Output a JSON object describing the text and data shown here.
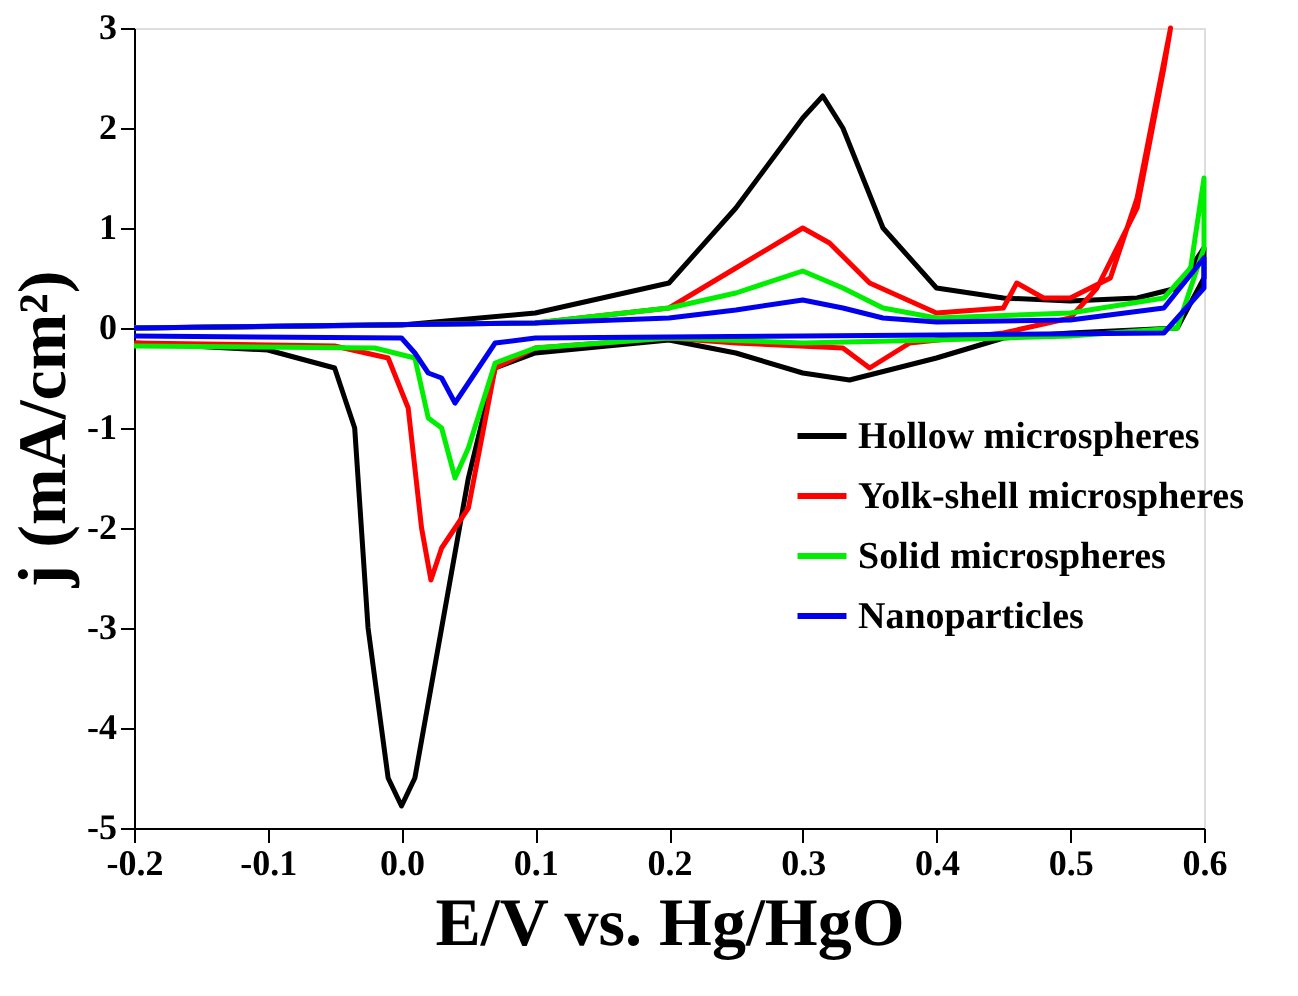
{
  "chart_data": {
    "type": "line",
    "xlabel": "E/V vs. Hg/HgO",
    "ylabel": "j (mA/cm²)",
    "xlim": [
      -0.2,
      0.6
    ],
    "ylim": [
      -5,
      3
    ],
    "xticks": [
      {
        "value": -0.2,
        "label": "-0.2"
      },
      {
        "value": -0.1,
        "label": "-0.1"
      },
      {
        "value": 0,
        "label": "0.0"
      },
      {
        "value": 0.1,
        "label": "0.1"
      },
      {
        "value": 0.2,
        "label": "0.2"
      },
      {
        "value": 0.3,
        "label": "0.3"
      },
      {
        "value": 0.4,
        "label": "0.4"
      },
      {
        "value": 0.5,
        "label": "0.5"
      },
      {
        "value": 0.6,
        "label": "0.6"
      }
    ],
    "yticks": [
      -5,
      -4,
      -3,
      -2,
      -1,
      0,
      1,
      2,
      3
    ],
    "grid": false,
    "legend": "right",
    "line_style": "solid",
    "marker": "none",
    "series": [
      {
        "name": "Hollow microspheres",
        "color": "#000000",
        "x": [
          -0.2,
          0,
          0.1,
          0.2,
          0.25,
          0.3,
          0.315,
          0.33,
          0.36,
          0.4,
          0.45,
          0.5,
          0.55,
          0.58,
          0.6,
          0.6,
          0.58,
          0.5,
          0.45,
          0.4,
          0.335,
          0.3,
          0.25,
          0.2,
          0.1,
          0.07,
          0.05,
          0.03,
          0.01,
          0,
          -0.01,
          -0.025,
          -0.035,
          -0.05,
          -0.1,
          -0.2
        ],
        "values": [
          0,
          0.03,
          0.15,
          0.45,
          1.2,
          2.1,
          2.32,
          2.0,
          1.0,
          0.4,
          0.3,
          0.27,
          0.3,
          0.4,
          0.8,
          0.5,
          0,
          -0.05,
          -0.1,
          -0.3,
          -0.52,
          -0.45,
          -0.25,
          -0.12,
          -0.25,
          -0.4,
          -1.5,
          -3.0,
          -4.5,
          -4.78,
          -4.5,
          -3.0,
          -1.0,
          -0.4,
          -0.22,
          -0.15
        ]
      },
      {
        "name": "Yolk-shell microspheres",
        "color": "#ff0000",
        "x": [
          -0.2,
          0.1,
          0.2,
          0.25,
          0.3,
          0.32,
          0.35,
          0.4,
          0.45,
          0.46,
          0.48,
          0.5,
          0.53,
          0.55,
          0.575,
          0.57,
          0.55,
          0.52,
          0.5,
          0.45,
          0.38,
          0.35,
          0.33,
          0.25,
          0.2,
          0.1,
          0.07,
          0.05,
          0.04,
          0.03,
          0.022,
          0.015,
          0.005,
          -0.01,
          -0.05,
          -0.2
        ],
        "values": [
          0,
          0.05,
          0.2,
          0.6,
          1.0,
          0.85,
          0.45,
          0.15,
          0.2,
          0.45,
          0.3,
          0.3,
          0.5,
          1.3,
          3.0,
          2.6,
          1.2,
          0.4,
          0.1,
          -0.05,
          -0.15,
          -0.4,
          -0.2,
          -0.15,
          -0.1,
          -0.2,
          -0.4,
          -1.8,
          -2.0,
          -2.2,
          -2.52,
          -2.0,
          -0.8,
          -0.3,
          -0.18,
          -0.15
        ]
      },
      {
        "name": "Solid microspheres",
        "color": "#00ee00",
        "x": [
          -0.2,
          0.1,
          0.2,
          0.25,
          0.3,
          0.33,
          0.36,
          0.4,
          0.5,
          0.57,
          0.59,
          0.6,
          0.6,
          0.58,
          0.5,
          0.4,
          0.3,
          0.2,
          0.1,
          0.07,
          0.05,
          0.04,
          0.03,
          0.02,
          0.01,
          -0.02,
          -0.2
        ],
        "values": [
          0,
          0.05,
          0.2,
          0.35,
          0.57,
          0.4,
          0.2,
          0.1,
          0.15,
          0.3,
          0.6,
          1.5,
          0.8,
          0,
          -0.08,
          -0.12,
          -0.15,
          -0.1,
          -0.2,
          -0.35,
          -1.2,
          -1.5,
          -1.0,
          -0.9,
          -0.3,
          -0.2,
          -0.18
        ]
      },
      {
        "name": "Nanoparticles",
        "color": "#0000ee",
        "x": [
          -0.2,
          0.1,
          0.2,
          0.25,
          0.3,
          0.33,
          0.36,
          0.4,
          0.5,
          0.57,
          0.6,
          0.6,
          0.57,
          0.4,
          0.3,
          0.1,
          0.07,
          0.05,
          0.04,
          0.03,
          0.02,
          0.01,
          0,
          -0.2
        ],
        "values": [
          0,
          0.05,
          0.1,
          0.18,
          0.28,
          0.2,
          0.1,
          0.06,
          0.08,
          0.2,
          0.7,
          0.4,
          -0.05,
          -0.07,
          -0.08,
          -0.1,
          -0.15,
          -0.55,
          -0.75,
          -0.5,
          -0.45,
          -0.25,
          -0.1,
          -0.08
        ]
      }
    ]
  }
}
